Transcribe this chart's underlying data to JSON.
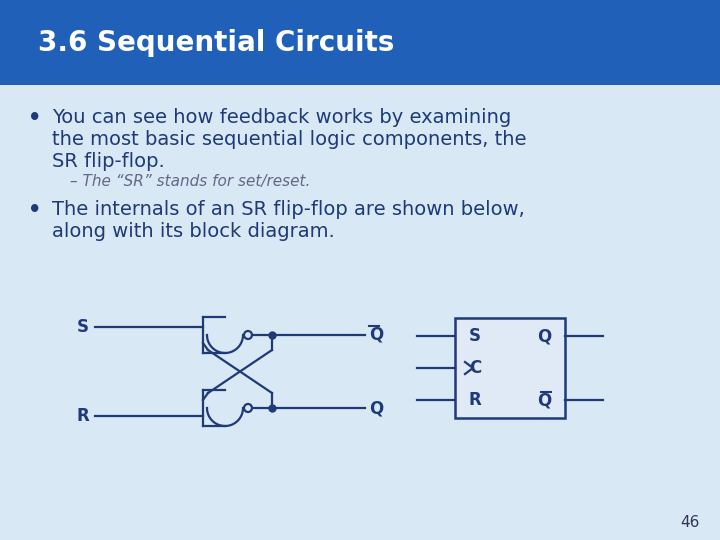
{
  "title": "3.6 Sequential Circuits",
  "title_color": "#FFFFFF",
  "title_bg_color": "#2060B8",
  "slide_bg_color": "#D8E8F4",
  "bullet1_line1": "You can see how feedback works by examining",
  "bullet1_line2": "the most basic sequential logic components, the",
  "bullet1_line3": "SR flip-flop.",
  "sub_bullet": "– The “SR” stands for set/reset.",
  "bullet2_line1": "The internals of an SR flip-flop are shown below,",
  "bullet2_line2": "along with its block diagram.",
  "page_number": "46",
  "dark_blue": "#1E3A78",
  "gate_color": "#1E3A78",
  "text_color": "#1E3A78",
  "sub_text_color": "#666688",
  "title_fontsize": 20,
  "body_fontsize": 14,
  "sub_fontsize": 11
}
